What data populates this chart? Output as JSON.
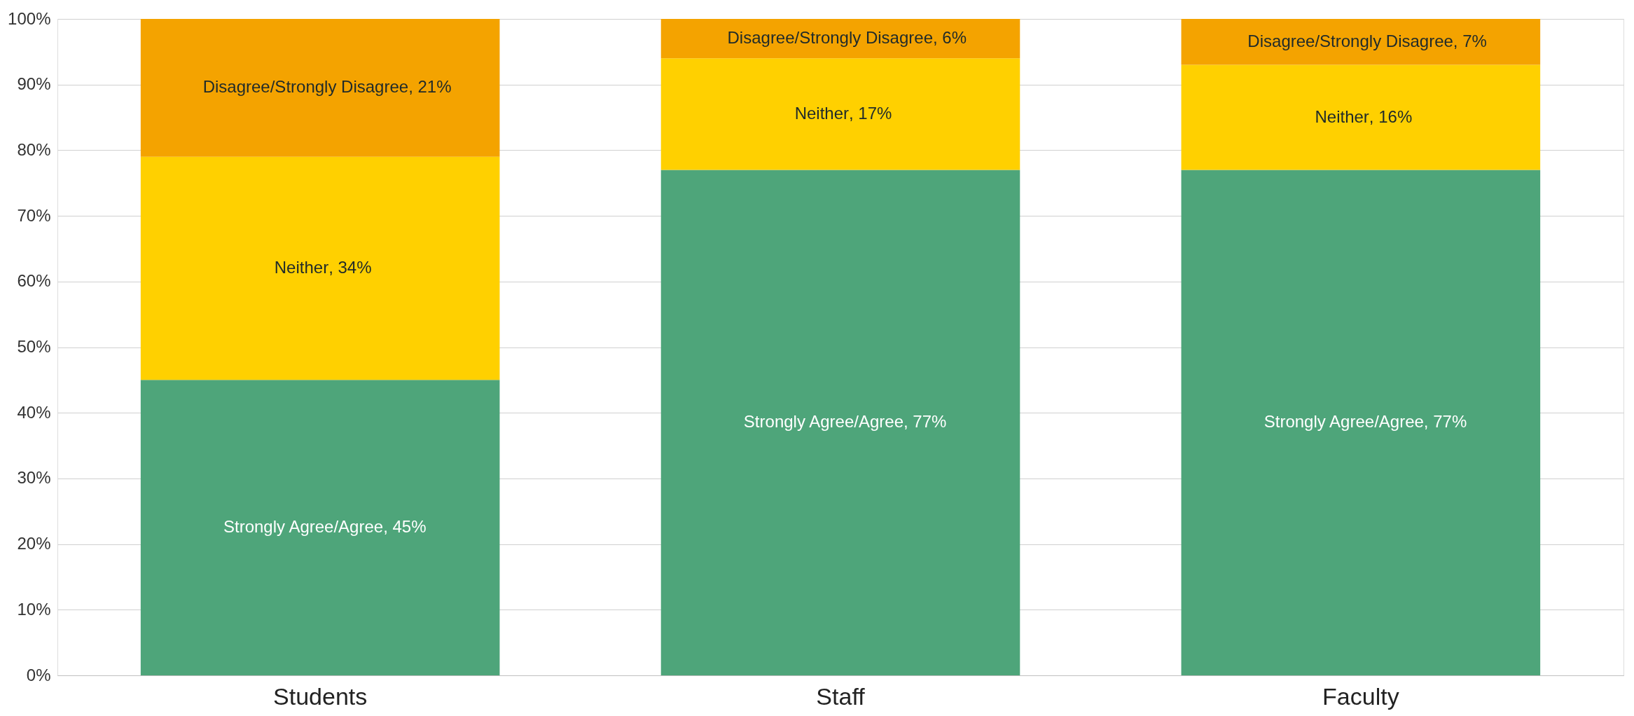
{
  "chart_data": {
    "type": "bar",
    "stacked": true,
    "categories": [
      "Students",
      "Staff",
      "Faculty"
    ],
    "series": [
      {
        "name": "Strongly Agree/Agree",
        "color": "#4ea57a",
        "values": [
          45,
          77,
          77
        ],
        "value_labels": [
          ", 45%",
          ", 77%",
          ", 77%"
        ]
      },
      {
        "name": "Neither",
        "color": "#ffd000",
        "values": [
          34,
          17,
          16
        ],
        "value_labels": [
          ", 34%",
          ", 17%",
          ", 16%"
        ]
      },
      {
        "name": "Disagree/Strongly Disagree",
        "color": "#f4a300",
        "values": [
          21,
          6,
          7
        ],
        "value_labels": [
          ", 21%",
          ", 6%",
          ", 7%"
        ]
      }
    ],
    "ylim": [
      0,
      100
    ],
    "yticks": [
      {
        "value": 0,
        "label": "0%"
      },
      {
        "value": 10,
        "label": "10%"
      },
      {
        "value": 20,
        "label": "20%"
      },
      {
        "value": 30,
        "label": "30%"
      },
      {
        "value": 40,
        "label": "40%"
      },
      {
        "value": 50,
        "label": "50%"
      },
      {
        "value": 60,
        "label": "60%"
      },
      {
        "value": 70,
        "label": "70%"
      },
      {
        "value": 80,
        "label": "80%"
      },
      {
        "value": 90,
        "label": "90%"
      },
      {
        "value": 100,
        "label": "100%"
      }
    ],
    "grid": "y",
    "legend": false
  }
}
